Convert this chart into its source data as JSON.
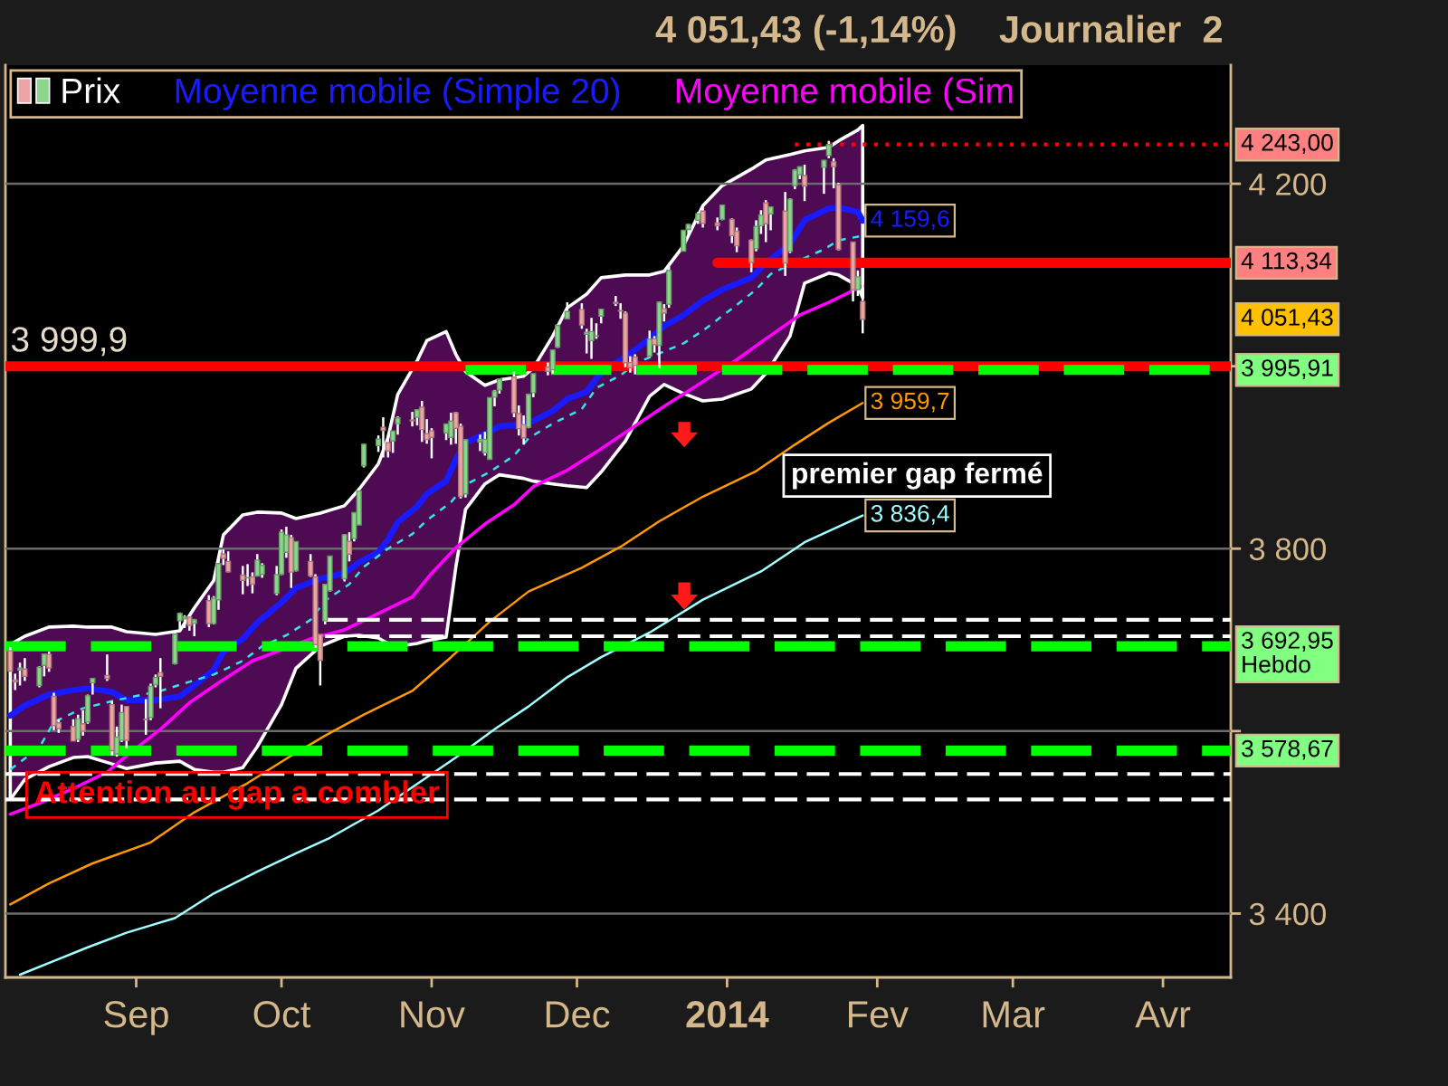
{
  "chart_data": {
    "type": "candlestick",
    "title": "4 051,43 (-1,14%)    Journalier  2",
    "xlim": [
      "2013-08-05",
      "2014-04-15"
    ],
    "xticks": [
      {
        "value": "2013-09-01",
        "label": "Sep"
      },
      {
        "value": "2013-10-01",
        "label": "Oct"
      },
      {
        "value": "2013-11-01",
        "label": "Nov"
      },
      {
        "value": "2013-12-01",
        "label": "Dec"
      },
      {
        "value": "2014-01-01",
        "label": "2014"
      },
      {
        "value": "2014-02-01",
        "label": "Fev"
      },
      {
        "value": "2014-03-01",
        "label": "Mar"
      },
      {
        "value": "2014-04-01",
        "label": "Avr"
      }
    ],
    "ylim": [
      3330,
      4330
    ],
    "yticks": [
      {
        "value": 3400,
        "label": "3 400"
      },
      {
        "value": 3600,
        "label": null
      },
      {
        "value": 3800,
        "label": "3 800"
      },
      {
        "value": 4000,
        "label": null
      },
      {
        "value": 4200,
        "label": "4 200"
      }
    ],
    "grid": "y",
    "legend": "top left",
    "annotations": [
      "premier gap fermé",
      {
        "text": "Attention au gap a combler",
        "x": "2013-08-11",
        "y": 3530
      }
    ],
    "ref_lines": [
      {
        "axis": "y",
        "value": 3999.9,
        "label": "3 999,9",
        "color": "#ff0000"
      },
      {
        "axis": "y",
        "value": 3692.95,
        "label": "3 692,95\nHebdo",
        "color": "#00ff00",
        "line_style": "dashed"
      },
      {
        "axis": "y",
        "value": 3578.67,
        "label": "3 578,67",
        "color": "#00ff00",
        "line_style": "dashed"
      },
      {
        "axis": "y",
        "value": 3553,
        "color": "#ffffff",
        "line_style": "dashed"
      },
      {
        "axis": "y",
        "value": 3525,
        "color": "#ffffff",
        "line_style": "dashed"
      }
    ],
    "series": [
      {
        "name": "Prix",
        "color": "#ffffff",
        "x": [
          "2013-08-06",
          "2013-08-07",
          "2013-08-08",
          "2013-08-09",
          "2013-08-12",
          "2013-08-13",
          "2013-08-14",
          "2013-08-15",
          "2013-08-16",
          "2013-08-19",
          "2013-08-20",
          "2013-08-21",
          "2013-08-22",
          "2013-08-23",
          "2013-08-26",
          "2013-08-27",
          "2013-08-28",
          "2013-08-29",
          "2013-08-30",
          "2013-09-03",
          "2013-09-04",
          "2013-09-05",
          "2013-09-06",
          "2013-09-09",
          "2013-09-10",
          "2013-09-11",
          "2013-09-12",
          "2013-09-13",
          "2013-09-16",
          "2013-09-17",
          "2013-09-18",
          "2013-09-19",
          "2013-09-20",
          "2013-09-23",
          "2013-09-24",
          "2013-09-25",
          "2013-09-26",
          "2013-09-27",
          "2013-09-30",
          "2013-10-01",
          "2013-10-02",
          "2013-10-03",
          "2013-10-04",
          "2013-10-07",
          "2013-10-08",
          "2013-10-09",
          "2013-10-10",
          "2013-10-11",
          "2013-10-14",
          "2013-10-15",
          "2013-10-16",
          "2013-10-17",
          "2013-10-18",
          "2013-10-21",
          "2013-10-22",
          "2013-10-23",
          "2013-10-24",
          "2013-10-25",
          "2013-10-28",
          "2013-10-29",
          "2013-10-30",
          "2013-10-31",
          "2013-11-01",
          "2013-11-04",
          "2013-11-05",
          "2013-11-06",
          "2013-11-07",
          "2013-11-08",
          "2013-11-11",
          "2013-11-12",
          "2013-11-13",
          "2013-11-14",
          "2013-11-15",
          "2013-11-18",
          "2013-11-19",
          "2013-11-20",
          "2013-11-21",
          "2013-11-22",
          "2013-11-25",
          "2013-11-26",
          "2013-11-27",
          "2013-11-29",
          "2013-12-02",
          "2013-12-03",
          "2013-12-04",
          "2013-12-05",
          "2013-12-06",
          "2013-12-09",
          "2013-12-10",
          "2013-12-11",
          "2013-12-12",
          "2013-12-13",
          "2013-12-16",
          "2013-12-17",
          "2013-12-18",
          "2013-12-19",
          "2013-12-20",
          "2013-12-23",
          "2013-12-24",
          "2013-12-26",
          "2013-12-27",
          "2013-12-30",
          "2013-12-31",
          "2014-01-02",
          "2014-01-03",
          "2014-01-06",
          "2014-01-07",
          "2014-01-08",
          "2014-01-09",
          "2014-01-10",
          "2014-01-13",
          "2014-01-14",
          "2014-01-15",
          "2014-01-16",
          "2014-01-17",
          "2014-01-21",
          "2014-01-22",
          "2014-01-23",
          "2014-01-24",
          "2014-01-27",
          "2014-01-28",
          "2014-01-29"
        ],
        "ohlc": [
          [
            3688,
            3692,
            3655,
            3665.77
          ],
          [
            3656,
            3663,
            3645,
            3654.01
          ],
          [
            3667,
            3675,
            3650,
            3669.12
          ],
          [
            3668,
            3680,
            3655,
            3660.11
          ],
          [
            3650,
            3671,
            3648,
            3669.95
          ],
          [
            3672,
            3685,
            3660,
            3684.44
          ],
          [
            3684,
            3687,
            3665,
            3669.27
          ],
          [
            3638,
            3642,
            3601,
            3606.12
          ],
          [
            3609,
            3613,
            3598,
            3602.78
          ],
          [
            3605,
            3613,
            3589,
            3589.09
          ],
          [
            3591,
            3618,
            3588,
            3613.59
          ],
          [
            3608,
            3623,
            3595,
            3599.79
          ],
          [
            3610,
            3640,
            3608,
            3638.71
          ],
          [
            3653,
            3658,
            3640,
            3657.79
          ],
          [
            3661,
            3684,
            3655,
            3657.57
          ],
          [
            3629,
            3633,
            3573,
            3578.52
          ],
          [
            3575,
            3605,
            3572,
            3593.35
          ],
          [
            3590,
            3629,
            3588,
            3620.3
          ],
          [
            3627,
            3627,
            3581,
            3589.87
          ],
          [
            3613,
            3635,
            3596,
            3612.61
          ],
          [
            3615,
            3652,
            3612,
            3649.04
          ],
          [
            3651,
            3662,
            3648,
            3658.78
          ],
          [
            3664,
            3680,
            3625,
            3660.01
          ],
          [
            3674,
            3708,
            3673,
            3706.18
          ],
          [
            3721,
            3730,
            3710,
            3729.02
          ],
          [
            3723,
            3727,
            3713,
            3725.01
          ],
          [
            3725,
            3728,
            3710,
            3715.97
          ],
          [
            3718,
            3723,
            3704,
            3722.18
          ],
          [
            3743,
            3749,
            3714,
            3717.85
          ],
          [
            3718,
            3748,
            3717,
            3745.7
          ],
          [
            3744,
            3790,
            3733,
            3783.64
          ],
          [
            3794,
            3799,
            3782,
            3789.38
          ],
          [
            3786,
            3797,
            3774,
            3774.73
          ],
          [
            3771,
            3781,
            3750,
            3765.29
          ],
          [
            3768,
            3783,
            3759,
            3768.25
          ],
          [
            3769,
            3774,
            3751,
            3761.1
          ],
          [
            3770,
            3794,
            3770,
            3787.43
          ],
          [
            3772,
            3784,
            3768,
            3781.59
          ],
          [
            3751,
            3781,
            3749,
            3771.48
          ],
          [
            3772,
            3821,
            3771,
            3817.98
          ],
          [
            3796,
            3824,
            3790,
            3815.02
          ],
          [
            3812,
            3815,
            3757,
            3774.34
          ],
          [
            3776,
            3808,
            3775,
            3807.75
          ],
          [
            3786,
            3794,
            3769,
            3770.38
          ],
          [
            3769,
            3772,
            3691,
            3694.83
          ],
          [
            3706,
            3706,
            3650,
            3677.78
          ],
          [
            3721,
            3761,
            3717,
            3760.75
          ],
          [
            3754,
            3792,
            3753,
            3791.87
          ],
          [
            3767,
            3816,
            3764,
            3815.28
          ],
          [
            3808,
            3818,
            3786,
            3794.01
          ],
          [
            3811,
            3840,
            3808,
            3839.43
          ],
          [
            3826,
            3866,
            3826,
            3863.15
          ],
          [
            3891,
            3915,
            3889,
            3914.28
          ],
          [
            3913,
            3924,
            3906,
            3920.05
          ],
          [
            3933,
            3944,
            3900,
            3929.57
          ],
          [
            3916,
            3924,
            3900,
            3907.07
          ],
          [
            3918,
            3929,
            3905,
            3928.96
          ],
          [
            3937,
            3945,
            3925,
            3943.36
          ],
          [
            3941,
            3950,
            3934,
            3940.13
          ],
          [
            3944,
            3953,
            3935,
            3952.34
          ],
          [
            3955,
            3962,
            3917,
            3930.62
          ],
          [
            3926,
            3942,
            3915,
            3919.71
          ],
          [
            3929,
            3932,
            3899,
            3922.04
          ],
          [
            3927,
            3937,
            3919,
            3936.59
          ],
          [
            3922,
            3949,
            3914,
            3939.86
          ],
          [
            3949,
            3950,
            3915,
            3931.95
          ],
          [
            3934,
            3937,
            3855,
            3857.33
          ],
          [
            3860,
            3920,
            3856,
            3919.23
          ],
          [
            3917,
            3925,
            3907,
            3919.79
          ],
          [
            3905,
            3928,
            3902,
            3919.92
          ],
          [
            3898,
            3966,
            3898,
            3965.58
          ],
          [
            3966,
            3974,
            3956,
            3972.74
          ],
          [
            3974,
            3986,
            3970,
            3985.97
          ],
          [
            3988,
            3994,
            3944,
            3949.07
          ],
          [
            3948,
            3957,
            3924,
            3931.55
          ],
          [
            3936,
            3946,
            3914,
            3921.27
          ],
          [
            3933,
            3970,
            3932,
            3969.15
          ],
          [
            3971,
            3992,
            3966,
            3991.65
          ],
          [
            3999,
            4004,
            3990,
            3994.57
          ],
          [
            3996,
            4018,
            3992,
            4017.75
          ],
          [
            4021,
            4046,
            4020,
            4044.75
          ],
          [
            4052,
            4070,
            4052,
            4059.89
          ],
          [
            4062,
            4069,
            4041,
            4045.26
          ],
          [
            4035,
            4041,
            4014,
            4037.2
          ],
          [
            4028,
            4053,
            4008,
            4038.0
          ],
          [
            4033,
            4047,
            4030,
            4033.16
          ],
          [
            4055,
            4063,
            4047,
            4062.52
          ],
          [
            4070,
            4077,
            4066,
            4068.75
          ],
          [
            4061,
            4069,
            4052,
            4060.49
          ],
          [
            4058,
            4060,
            3999,
            4003.81
          ],
          [
            4004,
            4011,
            3993,
            3998.4
          ],
          [
            4010,
            4013,
            3991,
            4000.98
          ],
          [
            4011,
            4039,
            4010,
            4029.52
          ],
          [
            4030,
            4033,
            4015,
            4023.68
          ],
          [
            4023,
            4071,
            3998,
            4070.06
          ],
          [
            4063,
            4068,
            4049,
            4058.13
          ],
          [
            4068,
            4113,
            4064,
            4104.74
          ],
          [
            4126,
            4149,
            4126,
            4148.9
          ],
          [
            4150,
            4156,
            4145,
            4155.42
          ],
          [
            4160,
            4169,
            4156,
            4167.18
          ],
          [
            4170,
            4175,
            4152,
            4156.59
          ],
          [
            4157,
            4163,
            4149,
            4154.2
          ],
          [
            4161,
            4177,
            4160,
            4176.59
          ],
          [
            4161,
            4162,
            4135,
            4143.07
          ],
          [
            4148,
            4152,
            4125,
            4131.91
          ],
          [
            4138,
            4139,
            4103,
            4113.68
          ],
          [
            4129,
            4160,
            4126,
            4153.18
          ],
          [
            4154,
            4171,
            4145,
            4165.61
          ],
          [
            4179,
            4182,
            4136,
            4156.19
          ],
          [
            4167,
            4175,
            4149,
            4174.67
          ],
          [
            4170,
            4191,
            4099,
            4113.3
          ],
          [
            4126,
            4184,
            4124,
            4183.02
          ],
          [
            4198,
            4216,
            4194,
            4214.88
          ],
          [
            4210,
            4219,
            4205,
            4218.69
          ],
          [
            4209,
            4221,
            4181,
            4197.58
          ],
          [
            4218,
            4226,
            4189,
            4225.76
          ],
          [
            4231,
            4247,
            4228,
            4243.0
          ],
          [
            4224,
            4228,
            4195,
            4218.88
          ],
          [
            4199,
            4201,
            4127,
            4128.17
          ],
          [
            4136,
            4136,
            4071,
            4083.61
          ],
          [
            4084,
            4105,
            4077,
            4097.96
          ],
          [
            4071,
            4093,
            4036,
            4051.43
          ]
        ],
        "colors": [
          "#eca4a4",
          "#eca4a4",
          "#8cd68c",
          "#eca4a4",
          "#8cd68c",
          "#8cd68c",
          "#eca4a4",
          "#eca4a4",
          "#eca4a4",
          "#eca4a4",
          "#8cd68c",
          "#eca4a4",
          "#8cd68c",
          "#8cd68c",
          "#eca4a4",
          "#eca4a4",
          "#8cd68c",
          "#8cd68c",
          "#eca4a4",
          "#eca4a4",
          "#8cd68c",
          "#8cd68c",
          "#eca4a4",
          "#8cd68c",
          "#8cd68c",
          "#8cd68c",
          "#eca4a4",
          "#8cd68c",
          "#eca4a4",
          "#8cd68c",
          "#8cd68c",
          "#eca4a4",
          "#eca4a4",
          "#eca4a4",
          "#8cd68c",
          "#eca4a4",
          "#8cd68c",
          "#8cd68c",
          "#8cd68c",
          "#8cd68c",
          "#8cd68c",
          "#eca4a4",
          "#8cd68c",
          "#eca4a4",
          "#eca4a4",
          "#eca4a4",
          "#8cd68c",
          "#8cd68c",
          "#8cd68c",
          "#eca4a4",
          "#8cd68c",
          "#8cd68c",
          "#8cd68c",
          "#8cd68c",
          "#eca4a4",
          "#eca4a4",
          "#8cd68c",
          "#8cd68c",
          "#eca4a4",
          "#8cd68c",
          "#eca4a4",
          "#eca4a4",
          "#eca4a4",
          "#8cd68c",
          "#8cd68c",
          "#eca4a4",
          "#eca4a4",
          "#8cd68c",
          "#8cd68c",
          "#8cd68c",
          "#8cd68c",
          "#8cd68c",
          "#8cd68c",
          "#eca4a4",
          "#eca4a4",
          "#eca4a4",
          "#8cd68c",
          "#8cd68c",
          "#eca4a4",
          "#8cd68c",
          "#8cd68c",
          "#8cd68c",
          "#eca4a4",
          "#8cd68c",
          "#8cd68c",
          "#8cd68c",
          "#8cd68c",
          "#eca4a4",
          "#eca4a4",
          "#eca4a4",
          "#eca4a4",
          "#eca4a4",
          "#8cd68c",
          "#eca4a4",
          "#8cd68c",
          "#eca4a4",
          "#8cd68c",
          "#8cd68c",
          "#8cd68c",
          "#8cd68c",
          "#eca4a4",
          "#eca4a4",
          "#8cd68c",
          "#eca4a4",
          "#eca4a4",
          "#eca4a4",
          "#8cd68c",
          "#8cd68c",
          "#eca4a4",
          "#8cd68c",
          "#eca4a4",
          "#8cd68c",
          "#8cd68c",
          "#8cd68c",
          "#eca4a4",
          "#8cd68c",
          "#8cd68c",
          "#eca4a4",
          "#eca4a4",
          "#eca4a4",
          "#8cd68c",
          "#eca4a4"
        ],
        "value_labels": [
          null,
          null,
          null,
          null,
          null,
          null,
          null,
          null,
          null,
          null,
          null,
          null,
          null,
          null,
          null,
          null,
          null,
          null,
          null,
          null,
          null,
          null,
          null,
          null,
          null,
          null,
          null,
          null,
          null,
          null,
          null,
          null,
          null,
          null,
          null,
          null,
          null,
          null,
          null,
          null,
          null,
          null,
          null,
          null,
          null,
          null,
          null,
          null,
          null,
          null,
          null,
          null,
          null,
          null,
          null,
          null,
          null,
          null,
          null,
          null,
          null,
          null,
          null,
          null,
          null,
          null,
          null,
          null,
          null,
          null,
          null,
          null,
          null,
          null,
          null,
          null,
          null,
          null,
          null,
          null,
          null,
          null,
          null,
          null,
          null,
          null,
          null,
          null,
          null,
          null,
          null,
          null,
          null,
          null,
          null,
          null,
          null,
          null,
          null,
          null,
          null,
          null,
          null,
          null,
          null,
          null,
          null,
          null,
          null,
          null,
          null,
          null,
          null,
          null,
          null,
          null,
          null,
          null,
          null,
          null,
          null,
          "4 051,43"
        ]
      },
      {
        "name": "Moyenne mobile (Simple 20)",
        "type": "line",
        "color": "#1a1aff",
        "x": [
          "2013-08-06",
          "2013-08-09",
          "2013-08-14",
          "2013-08-19",
          "2013-08-22",
          "2013-08-27",
          "2013-08-30",
          "2013-09-05",
          "2013-09-10",
          "2013-09-13",
          "2013-09-17",
          "2013-09-19",
          "2013-09-23",
          "2013-09-26",
          "2013-10-01",
          "2013-10-04",
          "2013-10-09",
          "2013-10-14",
          "2013-10-17",
          "2013-10-21",
          "2013-10-23",
          "2013-10-25",
          "2013-10-29",
          "2013-10-31",
          "2013-11-04",
          "2013-11-06",
          "2013-11-08",
          "2013-11-12",
          "2013-11-15",
          "2013-11-20",
          "2013-11-22",
          "2013-11-26",
          "2013-11-29",
          "2013-12-03",
          "2013-12-06",
          "2013-12-11",
          "2013-12-16",
          "2013-12-19",
          "2013-12-23",
          "2013-12-27",
          "2013-12-31",
          "2014-01-06",
          "2014-01-09",
          "2014-01-14",
          "2014-01-17",
          "2014-01-22",
          "2014-01-24",
          "2014-01-28",
          "2014-01-29"
        ],
        "values": [
          3617,
          3628,
          3640,
          3645,
          3647,
          3643,
          3634,
          3634,
          3638,
          3650,
          3667,
          3687,
          3701,
          3719,
          3741,
          3757,
          3767,
          3773,
          3785,
          3796,
          3810,
          3829,
          3846,
          3860,
          3874,
          3898,
          3916,
          3926,
          3934,
          3936,
          3940,
          3951,
          3964,
          3972,
          3993,
          4010,
          4030,
          4044,
          4056,
          4072,
          4084,
          4097,
          4113,
          4134,
          4160,
          4173,
          4174,
          4169,
          4159.6
        ],
        "upper": [
          3695,
          3704,
          3714,
          3715,
          3714,
          3714,
          3709,
          3706,
          3710,
          3735,
          3765,
          3815,
          3837,
          3840,
          3839,
          3833,
          3839,
          3847,
          3865,
          3893,
          3922,
          3969,
          4006,
          4028,
          4038,
          4013,
          3994,
          3979,
          3985,
          3989,
          3998,
          4033,
          4064,
          4079,
          4097,
          4100,
          4100,
          4104,
          4132,
          4176,
          4198,
          4216,
          4226,
          4232,
          4236,
          4240,
          4247,
          4259,
          4264
        ],
        "lower": [
          3525,
          3547,
          3561,
          3571,
          3572,
          3564,
          3559,
          3565,
          3567,
          3558,
          3555,
          3555,
          3560,
          3583,
          3629,
          3669,
          3693,
          3704,
          3705,
          3702,
          3696,
          3693,
          3696,
          3699,
          3703,
          3780,
          3843,
          3871,
          3881,
          3877,
          3874,
          3871,
          3869,
          3867,
          3884,
          3918,
          3967,
          3980,
          3970,
          3962,
          3964,
          3975,
          3992,
          4033,
          4091,
          4102,
          4100,
          4088,
          4075
        ],
        "value_labels": [
          null,
          null,
          null,
          null,
          null,
          null,
          null,
          null,
          null,
          null,
          null,
          null,
          null,
          null,
          null,
          null,
          null,
          null,
          null,
          null,
          null,
          null,
          null,
          null,
          null,
          null,
          null,
          null,
          null,
          null,
          null,
          null,
          null,
          null,
          null,
          null,
          null,
          null,
          null,
          null,
          null,
          null,
          null,
          null,
          null,
          null,
          null,
          null,
          "4 159,6"
        ]
      },
      {
        "name": "Moyenne mobile (Sim",
        "type": "line",
        "color": "#ff00ff",
        "x": [
          "2013-08-06",
          "2013-08-12",
          "2013-08-19",
          "2013-08-26",
          "2013-08-30",
          "2013-09-06",
          "2013-09-12",
          "2013-09-18",
          "2013-09-25",
          "2013-10-01",
          "2013-10-07",
          "2013-10-14",
          "2013-10-21",
          "2013-10-28",
          "2013-11-01",
          "2013-11-06",
          "2013-11-12",
          "2013-11-18",
          "2013-11-22",
          "2013-11-29",
          "2013-12-05",
          "2013-12-12",
          "2013-12-19",
          "2013-12-27",
          "2014-01-03",
          "2014-01-09",
          "2014-01-16",
          "2014-01-22",
          "2014-01-29"
        ],
        "values": [
          3509,
          3521,
          3537,
          3555,
          3573,
          3602,
          3631,
          3653,
          3677,
          3689,
          3701,
          3711,
          3729,
          3747,
          3773,
          3801,
          3827,
          3848,
          3868,
          3886,
          3906,
          3931,
          3956,
          3983,
          4007,
          4030,
          4056,
          4070,
          4088
        ]
      },
      {
        "type": "line",
        "color": "#33e6e6",
        "line_style": "dashed",
        "x": [
          "2013-08-06",
          "2013-08-12",
          "2013-08-15",
          "2013-08-21",
          "2013-08-28",
          "2013-09-06",
          "2013-09-12",
          "2013-09-17",
          "2013-09-23",
          "2013-09-27",
          "2013-10-02",
          "2013-10-07",
          "2013-10-10",
          "2013-10-15",
          "2013-10-18",
          "2013-10-23",
          "2013-10-28",
          "2013-10-31",
          "2013-11-05",
          "2013-11-08",
          "2013-11-13",
          "2013-11-18",
          "2013-11-21",
          "2013-11-26",
          "2013-12-02",
          "2013-12-05",
          "2013-12-10",
          "2013-12-13",
          "2013-12-18",
          "2013-12-23",
          "2013-12-27",
          "2014-01-02",
          "2014-01-07",
          "2014-01-10",
          "2014-01-15",
          "2014-01-21",
          "2014-01-24",
          "2014-01-29"
        ],
        "values": [
          3558,
          3582,
          3610,
          3625,
          3634,
          3644,
          3654,
          3662,
          3677,
          3693,
          3705,
          3722,
          3743,
          3761,
          3780,
          3800,
          3816,
          3831,
          3851,
          3870,
          3884,
          3902,
          3921,
          3937,
          3953,
          3976,
          3990,
          4003,
          4014,
          4025,
          4039,
          4063,
          4084,
          4101,
          4114,
          4128,
          4138,
          4143
        ]
      },
      {
        "type": "line",
        "color": "#ff9900",
        "x": [
          "2013-08-06",
          "2013-08-14",
          "2013-08-23",
          "2013-09-04",
          "2013-09-13",
          "2013-09-24",
          "2013-10-03",
          "2013-10-10",
          "2013-10-18",
          "2013-10-28",
          "2013-11-05",
          "2013-11-13",
          "2013-11-21",
          "2013-12-02",
          "2013-12-10",
          "2013-12-18",
          "2013-12-27",
          "2014-01-07",
          "2014-01-15",
          "2014-01-22",
          "2014-01-29"
        ],
        "values": [
          3410,
          3433,
          3455,
          3478,
          3511,
          3543,
          3573,
          3595,
          3618,
          3644,
          3681,
          3720,
          3753,
          3779,
          3802,
          3830,
          3857,
          3885,
          3914,
          3938,
          3959.7
        ],
        "value_labels": [
          null,
          null,
          null,
          null,
          null,
          null,
          null,
          null,
          null,
          null,
          null,
          null,
          null,
          null,
          null,
          null,
          null,
          null,
          null,
          null,
          "3 959,7"
        ]
      },
      {
        "type": "line",
        "color": "#a0ffff",
        "x": [
          "2013-08-08",
          "2013-08-15",
          "2013-08-22",
          "2013-08-30",
          "2013-09-09",
          "2013-09-17",
          "2013-09-26",
          "2013-10-04",
          "2013-10-11",
          "2013-10-21",
          "2013-10-29",
          "2013-11-06",
          "2013-11-14",
          "2013-11-21",
          "2013-11-29",
          "2013-12-06",
          "2013-12-16",
          "2013-12-27",
          "2014-01-08",
          "2014-01-17",
          "2014-01-29"
        ],
        "values": [
          3333,
          3348,
          3363,
          3379,
          3395,
          3422,
          3446,
          3466,
          3483,
          3513,
          3542,
          3571,
          3602,
          3627,
          3659,
          3681,
          3708,
          3744,
          3775,
          3807,
          3836.4
        ],
        "value_labels": [
          null,
          null,
          null,
          null,
          null,
          null,
          null,
          null,
          null,
          null,
          null,
          null,
          null,
          null,
          null,
          null,
          null,
          null,
          null,
          null,
          "3 836,4"
        ]
      },
      {
        "type": "line",
        "color": "#ff0000",
        "line_style": "dotted",
        "x": [
          "2014-01-15",
          "2014-04-15"
        ],
        "values": [
          4243.0,
          4243.0
        ],
        "value_labels": [
          null,
          "4 243,00"
        ]
      },
      {
        "type": "line",
        "color": "#ff0000",
        "x": [
          "2013-12-30",
          "2014-04-15"
        ],
        "values": [
          4113.34,
          4113.34
        ],
        "value_labels": [
          null,
          "4 113,34"
        ]
      },
      {
        "type": "line",
        "color": "#00ff00",
        "line_style": "dashed",
        "x": [
          "2013-11-08",
          "2014-04-15"
        ],
        "values": [
          3995.91,
          3995.91
        ],
        "value_labels": [
          null,
          "3 995,91"
        ]
      },
      {
        "type": "line",
        "color": "#ffffff",
        "line_style": "dashed",
        "x": [
          "2013-10-10",
          "2014-04-15"
        ],
        "values": [
          3722,
          3722
        ]
      },
      {
        "type": "line",
        "color": "#ffffff",
        "line_style": "dashed",
        "x": [
          "2013-10-10",
          "2014-04-15"
        ],
        "values": [
          3704,
          3704
        ]
      }
    ]
  }
}
